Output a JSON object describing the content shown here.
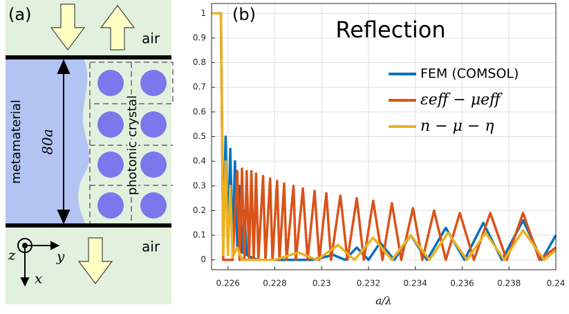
{
  "panel_a": {
    "label": "(a)",
    "air_top": "air",
    "air_bottom": "air",
    "metamaterial": "metamaterial",
    "thickness": "80a",
    "crystal": "photonic crystal",
    "axis_z": "z",
    "axis_y": "y",
    "axis_x": "x"
  },
  "chart_data": {
    "type": "line",
    "label": "(b)",
    "title": "Reflection",
    "x_label": "a/λ",
    "xlim": [
      0.2253,
      0.24
    ],
    "xticks": [
      0.226,
      0.228,
      0.23,
      0.232,
      0.234,
      0.236,
      0.238,
      0.24
    ],
    "ylim": [
      -0.04,
      1.04
    ],
    "yticks": [
      0,
      0.1,
      0.2,
      0.3,
      0.4,
      0.5,
      0.6,
      0.7,
      0.8,
      0.9,
      1
    ],
    "grid": true,
    "legend": "upper right",
    "series": [
      {
        "name": "FEM (COMSOL)",
        "color": "#0072bd",
        "x": [
          0.2253,
          0.2257,
          0.2258,
          0.2259,
          0.226,
          0.2261,
          0.2262,
          0.2263,
          0.2264,
          0.2265,
          0.2266,
          0.2267,
          0.2268,
          0.227,
          0.2273,
          0.2277,
          0.2282,
          0.2288,
          0.2296,
          0.2305,
          0.231,
          0.2315,
          0.232,
          0.2325,
          0.2331,
          0.2338,
          0.2345,
          0.2353,
          0.2361,
          0.2369,
          0.2377,
          0.2386,
          0.2394,
          0.24
        ],
        "values": [
          1,
          1,
          0.05,
          0.5,
          0.05,
          0.45,
          0.05,
          0.4,
          0.05,
          0.3,
          0.03,
          0.2,
          0.02,
          0.01,
          0,
          0,
          0,
          0,
          0,
          0.02,
          0,
          0.05,
          0,
          0.07,
          0,
          0.1,
          0,
          0.13,
          0,
          0.15,
          0,
          0.16,
          0,
          0.1
        ]
      },
      {
        "name": "εeff − μeff",
        "color": "#d95319",
        "x": [
          0.2253,
          0.2257,
          0.2258,
          0.2262,
          0.2264,
          0.2265,
          0.2266,
          0.2267,
          0.2268,
          0.2269,
          0.227,
          0.2271,
          0.2272,
          0.2273,
          0.2275,
          0.2276,
          0.2278,
          0.2279,
          0.2281,
          0.2282,
          0.2284,
          0.2285,
          0.2288,
          0.2289,
          0.2292,
          0.2294,
          0.2297,
          0.2299,
          0.2302,
          0.2304,
          0.2308,
          0.2311,
          0.2315,
          0.2318,
          0.2322,
          0.2326,
          0.233,
          0.2334,
          0.2339,
          0.2343,
          0.2348,
          0.2353,
          0.2359,
          0.2365,
          0.2372,
          0.2379,
          0.2386,
          0.2393,
          0.24
        ],
        "values": [
          1,
          1,
          0,
          0,
          0.36,
          0,
          0.37,
          0,
          0.36,
          0,
          0.36,
          0,
          0.35,
          0,
          0.34,
          0,
          0.33,
          0,
          0.32,
          0,
          0.31,
          0,
          0.3,
          0,
          0.29,
          0,
          0.28,
          0,
          0.27,
          0,
          0.26,
          0,
          0.25,
          0,
          0.24,
          0,
          0.23,
          0,
          0.21,
          0,
          0.2,
          0,
          0.19,
          0,
          0.19,
          0,
          0.19,
          0,
          0.05
        ]
      },
      {
        "name": "n − μ − η",
        "color": "#edb120",
        "x": [
          0.2253,
          0.2257,
          0.2258,
          0.2259,
          0.226,
          0.2261,
          0.2262,
          0.2264,
          0.2266,
          0.227,
          0.228,
          0.229,
          0.2298,
          0.2307,
          0.2314,
          0.2322,
          0.233,
          0.2338,
          0.2346,
          0.2354,
          0.2362,
          0.237,
          0.2378,
          0.2386,
          0.2395,
          0.24
        ],
        "values": [
          1,
          1,
          0.02,
          0.4,
          0.02,
          0.3,
          0.01,
          0.05,
          0,
          0,
          0,
          0.03,
          0,
          0.06,
          0,
          0.09,
          0,
          0.1,
          0,
          0.11,
          0,
          0.11,
          0,
          0.12,
          0,
          0.04
        ]
      }
    ]
  }
}
